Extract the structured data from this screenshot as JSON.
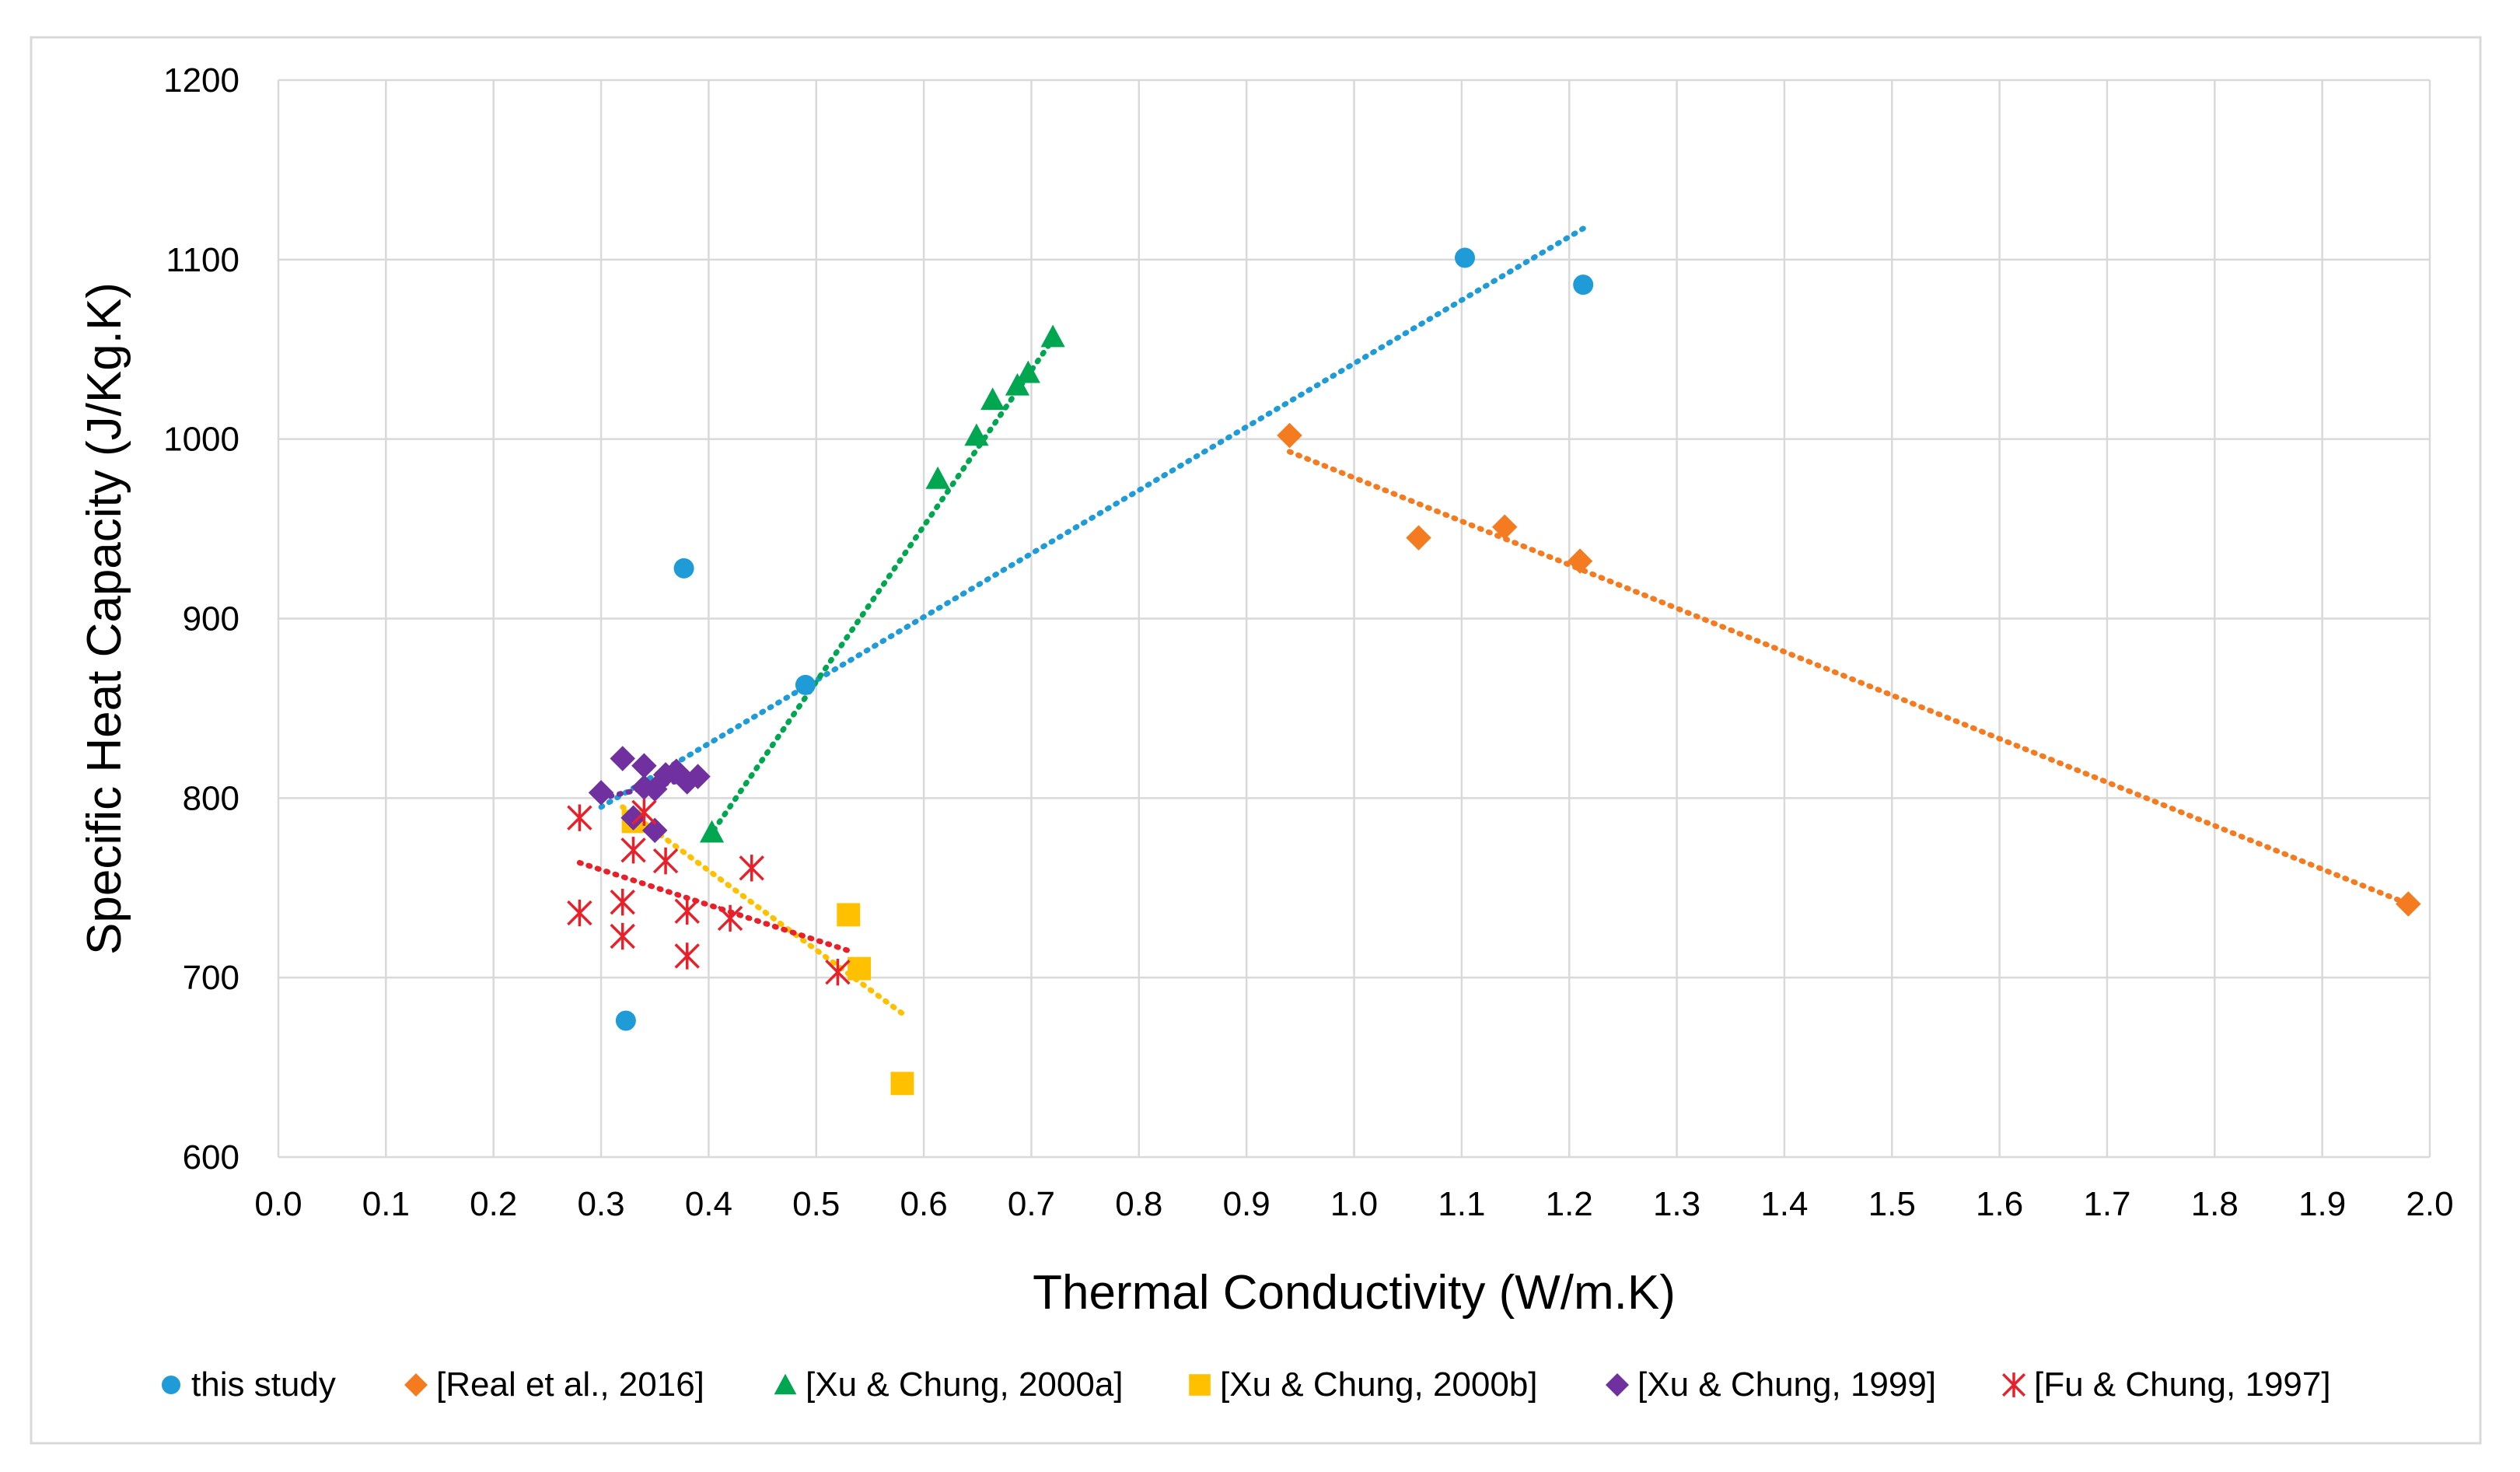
{
  "chart_data": {
    "type": "scatter",
    "title": "",
    "xlabel": "Thermal Conductivity (W/m.K)",
    "ylabel": "Specific Heat Capacity (J/Kg.K)",
    "xlim": [
      0.0,
      2.0
    ],
    "ylim": [
      600,
      1200
    ],
    "xticks": [
      "0.0",
      "0.1",
      "0.2",
      "0.3",
      "0.4",
      "0.5",
      "0.6",
      "0.7",
      "0.8",
      "0.9",
      "1.0",
      "1.1",
      "1.2",
      "1.3",
      "1.4",
      "1.5",
      "1.6",
      "1.7",
      "1.8",
      "1.9",
      "2.0"
    ],
    "yticks": [
      "600",
      "700",
      "800",
      "900",
      "1000",
      "1100",
      "1200"
    ],
    "grid": true,
    "legend_position": "bottom",
    "series": [
      {
        "name": "this study",
        "marker": "circle",
        "color": "#1f9bd7",
        "points": [
          [
            0.323,
            676
          ],
          [
            0.377,
            928
          ],
          [
            0.49,
            863
          ],
          [
            1.103,
            1101
          ],
          [
            1.213,
            1086
          ]
        ],
        "trendline": [
          [
            0.3,
            795
          ],
          [
            1.215,
            1118
          ]
        ]
      },
      {
        "name": "[Real et al., 2016]",
        "marker": "diamond",
        "color": "#f47b20",
        "points": [
          [
            0.94,
            1002
          ],
          [
            1.06,
            945
          ],
          [
            1.14,
            951
          ],
          [
            1.21,
            932
          ],
          [
            1.98,
            741
          ]
        ],
        "trendline": [
          [
            0.94,
            993
          ],
          [
            1.98,
            741
          ]
        ]
      },
      {
        "name": "[Xu & Chung, 2000a]",
        "marker": "triangle",
        "color": "#00a650",
        "points": [
          [
            0.403,
            781
          ],
          [
            0.613,
            978
          ],
          [
            0.649,
            1002
          ],
          [
            0.664,
            1022
          ],
          [
            0.687,
            1030
          ],
          [
            0.697,
            1037
          ],
          [
            0.72,
            1057
          ]
        ],
        "trendline": [
          [
            0.4,
            778
          ],
          [
            0.725,
            1060
          ]
        ]
      },
      {
        "name": "[Xu & Chung, 2000b]",
        "marker": "square",
        "color": "#ffc000",
        "points": [
          [
            0.33,
            787
          ],
          [
            0.53,
            735
          ],
          [
            0.54,
            705
          ],
          [
            0.58,
            641
          ]
        ],
        "trendline": [
          [
            0.32,
            795
          ],
          [
            0.58,
            680
          ]
        ]
      },
      {
        "name": "[Xu & Chung, 1999]",
        "marker": "diamond",
        "color": "#7030a0",
        "points": [
          [
            0.3,
            803
          ],
          [
            0.32,
            822
          ],
          [
            0.33,
            789
          ],
          [
            0.34,
            818
          ],
          [
            0.34,
            806
          ],
          [
            0.35,
            805
          ],
          [
            0.35,
            782
          ],
          [
            0.36,
            813
          ],
          [
            0.37,
            815
          ],
          [
            0.38,
            809
          ],
          [
            0.39,
            812
          ]
        ],
        "trendline": [
          [
            0.3,
            800
          ],
          [
            0.39,
            812
          ]
        ]
      },
      {
        "name": "[Fu & Chung, 1997]",
        "marker": "asterisk",
        "color": "#e8202a",
        "points": [
          [
            0.28,
            789
          ],
          [
            0.28,
            736
          ],
          [
            0.32,
            742
          ],
          [
            0.32,
            723
          ],
          [
            0.33,
            771
          ],
          [
            0.34,
            792
          ],
          [
            0.36,
            765
          ],
          [
            0.38,
            737
          ],
          [
            0.38,
            712
          ],
          [
            0.42,
            733
          ],
          [
            0.44,
            761
          ],
          [
            0.52,
            703
          ]
        ],
        "trendline": [
          [
            0.28,
            764
          ],
          [
            0.53,
            715
          ]
        ]
      }
    ]
  }
}
